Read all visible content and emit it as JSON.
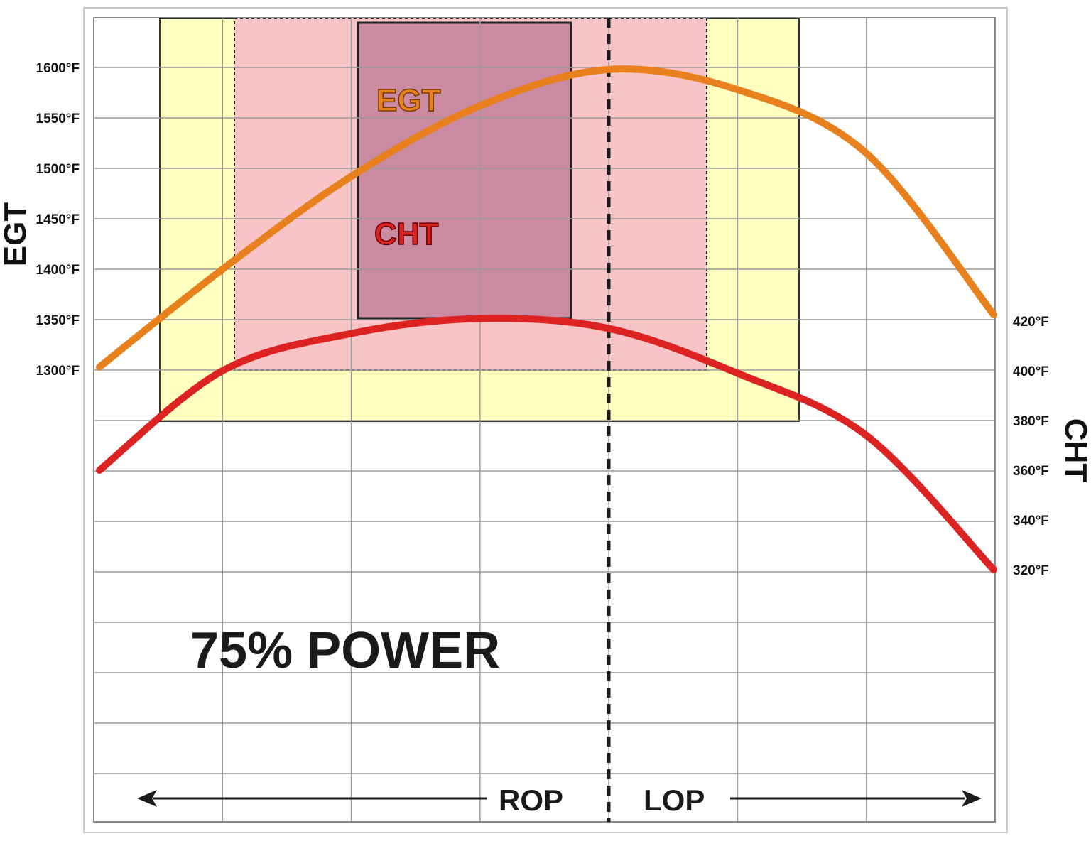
{
  "chart_data": {
    "type": "line",
    "title": "75% POWER",
    "x_direction_labels": [
      "ROP",
      "LOP"
    ],
    "y_left": {
      "label": "EGT",
      "ticks": [
        "1600°F",
        "1550°F",
        "1500°F",
        "1450°F",
        "1400°F",
        "1350°F",
        "1300°F"
      ],
      "tick_values": [
        1600,
        1550,
        1500,
        1450,
        1400,
        1350,
        1300
      ]
    },
    "y_right": {
      "label": "CHT",
      "ticks": [
        "420°F",
        "400°F",
        "380°F",
        "360°F",
        "340°F",
        "320°F"
      ],
      "tick_values": [
        420,
        400,
        380,
        360,
        340,
        320
      ]
    },
    "series": [
      {
        "name": "EGT",
        "axis": "left",
        "color": "#E8801E",
        "x": [
          0,
          1,
          2,
          3,
          4,
          5,
          6,
          7
        ],
        "values": [
          1303,
          1400,
          1492,
          1562,
          1598,
          1578,
          1515,
          1355
        ]
      },
      {
        "name": "CHT",
        "axis": "right",
        "color": "#DD2222",
        "x": [
          0,
          1,
          2,
          3,
          4,
          5,
          6,
          7
        ],
        "values": [
          360,
          400,
          415,
          421,
          417,
          399,
          374,
          320
        ]
      }
    ],
    "bands": [
      {
        "type": "yellow",
        "color": "#FFFFC0"
      },
      {
        "type": "pink",
        "color": "#F8C4C6"
      },
      {
        "type": "mauve",
        "color": "#C98AA2"
      }
    ],
    "peak_marker": "dashed-vertical",
    "grid": true
  }
}
